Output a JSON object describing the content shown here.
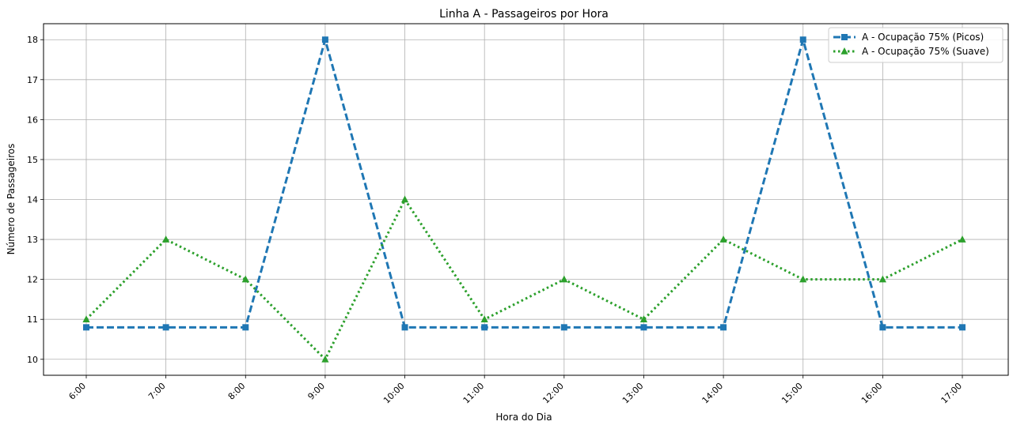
{
  "chart_data": {
    "type": "line",
    "title": "Linha A - Passageiros por Hora",
    "xlabel": "Hora do Dia",
    "ylabel": "Número de Passageiros",
    "categories": [
      "6:00",
      "7:00",
      "8:00",
      "9:00",
      "10:00",
      "11:00",
      "12:00",
      "13:00",
      "14:00",
      "15:00",
      "16:00",
      "17:00"
    ],
    "ylim": [
      9.6,
      18.4
    ],
    "yticks": [
      10,
      11,
      12,
      13,
      14,
      15,
      16,
      17,
      18
    ],
    "grid": true,
    "legend_position": "top-right",
    "series": [
      {
        "name": "A - Ocupação 75% (Picos)",
        "values": [
          10.8,
          10.8,
          10.8,
          18,
          10.8,
          10.8,
          10.8,
          10.8,
          10.8,
          18,
          10.8,
          10.8
        ],
        "color": "#1f77b4",
        "line_style": "dashed",
        "marker": "square"
      },
      {
        "name": "A - Ocupação 75% (Suave)",
        "values": [
          11,
          13,
          12,
          10,
          14,
          11,
          12,
          11,
          13,
          12,
          12,
          13
        ],
        "color": "#2ca02c",
        "line_style": "dotted",
        "marker": "triangle"
      }
    ]
  }
}
